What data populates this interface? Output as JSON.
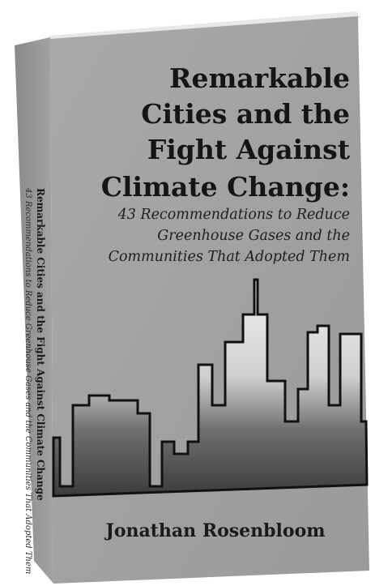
{
  "cover": {
    "title_lines": [
      "Remarkable",
      "Cities and the",
      "Fight Against",
      "Climate Change:"
    ],
    "subtitle_lines": [
      "43 Recommendations to Reduce",
      "Greenhouse Gases and the",
      "Communities That Adopted Them"
    ],
    "author": "Jonathan Rosenbloom"
  },
  "spine": {
    "title": "Remarkable Cities and the Fight Against Climate Change",
    "subtitle": "43 Recommendations to Reduce Greenhouse Gases and the Communities That Adopted Them"
  }
}
